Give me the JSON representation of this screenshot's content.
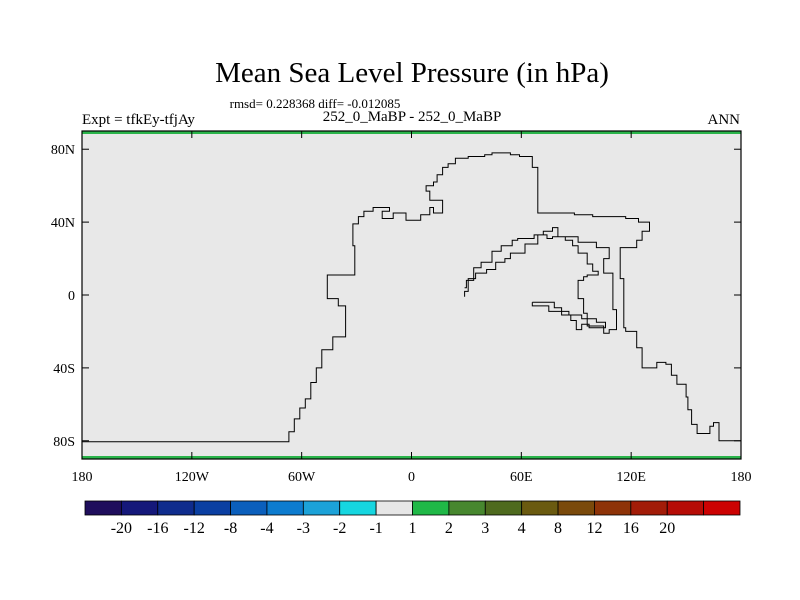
{
  "title": "Mean Sea Level Pressure (in hPa)",
  "stats_line": "rmsd= 0.228368 diff= -0.012085",
  "left_label": "Expt = tfkEy-tfjAy",
  "center_label": "252_0_MaBP - 252_0_MaBP",
  "right_label": "ANN",
  "map": {
    "lon_range": [
      -180,
      180
    ],
    "lat_range": [
      -90,
      90
    ],
    "fill_color": "#e8e8e8",
    "boundary_color": "#2ab44a",
    "lat_ticks": [
      {
        "value": 80,
        "label": "80N"
      },
      {
        "value": 40,
        "label": "40N"
      },
      {
        "value": 0,
        "label": "0"
      },
      {
        "value": -40,
        "label": "40S"
      },
      {
        "value": -80,
        "label": "80S"
      }
    ],
    "lon_ticks": [
      {
        "value": -180,
        "label": "180"
      },
      {
        "value": -120,
        "label": "120W"
      },
      {
        "value": -60,
        "label": "60W"
      },
      {
        "value": 0,
        "label": "0"
      },
      {
        "value": 60,
        "label": "60E"
      },
      {
        "value": 120,
        "label": "120E"
      },
      {
        "value": 180,
        "label": "180"
      }
    ],
    "coastlines": [
      [
        [
          -180,
          -80.5
        ],
        [
          -67,
          -80.5
        ],
        [
          -67,
          -75
        ],
        [
          -64,
          -75
        ],
        [
          -64,
          -68
        ],
        [
          -61,
          -68
        ],
        [
          -61,
          -62
        ],
        [
          -58,
          -62
        ],
        [
          -58,
          -57
        ],
        [
          -55,
          -57
        ],
        [
          -55,
          -48
        ],
        [
          -52,
          -48
        ],
        [
          -52,
          -40
        ],
        [
          -49,
          -40
        ],
        [
          -49,
          -30
        ],
        [
          -43,
          -30
        ],
        [
          -43,
          -23
        ],
        [
          -36,
          -23
        ],
        [
          -36,
          -6
        ],
        [
          -40,
          -6
        ],
        [
          -40,
          -2
        ],
        [
          -46,
          -2
        ],
        [
          -46,
          11
        ],
        [
          -31,
          11
        ],
        [
          -31,
          27
        ],
        [
          -32,
          27
        ],
        [
          -32,
          39
        ],
        [
          -29,
          39
        ],
        [
          -29,
          43
        ],
        [
          -26,
          43
        ],
        [
          -26,
          46
        ],
        [
          -21,
          46
        ],
        [
          -21,
          48
        ],
        [
          -12,
          48
        ],
        [
          -12,
          46
        ],
        [
          -16,
          46
        ],
        [
          -16,
          42
        ],
        [
          -10,
          42
        ],
        [
          -10,
          45
        ],
        [
          -3,
          45
        ],
        [
          -3,
          41
        ],
        [
          5,
          41
        ],
        [
          5,
          44
        ],
        [
          10,
          44
        ],
        [
          10,
          48
        ],
        [
          12,
          48
        ],
        [
          12,
          45
        ],
        [
          17,
          45
        ],
        [
          17,
          52
        ],
        [
          10,
          52
        ],
        [
          10,
          57
        ],
        [
          8,
          57
        ],
        [
          8,
          60
        ],
        [
          12,
          60
        ],
        [
          12,
          62
        ],
        [
          14,
          62
        ],
        [
          14,
          66
        ],
        [
          17,
          66
        ],
        [
          17,
          70
        ],
        [
          20,
          70
        ],
        [
          20,
          72
        ],
        [
          24,
          72
        ],
        [
          24,
          75
        ],
        [
          31,
          75
        ],
        [
          31,
          76
        ],
        [
          40,
          76
        ],
        [
          40,
          77
        ],
        [
          44,
          77
        ],
        [
          44,
          78
        ],
        [
          54,
          78
        ],
        [
          54,
          77
        ],
        [
          59,
          77
        ],
        [
          59,
          76
        ],
        [
          66,
          76
        ],
        [
          66,
          70
        ],
        [
          69,
          70
        ],
        [
          69,
          45
        ],
        [
          89,
          45
        ],
        [
          89,
          44
        ],
        [
          99,
          44
        ],
        [
          99,
          43
        ],
        [
          117,
          43
        ],
        [
          117,
          42
        ],
        [
          124,
          42
        ],
        [
          124,
          40
        ],
        [
          130,
          40
        ],
        [
          130,
          35
        ],
        [
          126,
          35
        ],
        [
          126,
          30
        ],
        [
          123,
          30
        ],
        [
          123,
          26
        ],
        [
          114,
          26
        ],
        [
          114,
          9
        ],
        [
          116,
          9
        ],
        [
          116,
          -18
        ],
        [
          117,
          -18
        ],
        [
          117,
          -20
        ],
        [
          123,
          -20
        ],
        [
          123,
          -29
        ],
        [
          126,
          -29
        ],
        [
          126,
          -40
        ],
        [
          134,
          -40
        ],
        [
          134,
          -37
        ],
        [
          139,
          -37
        ],
        [
          139,
          -38
        ],
        [
          142,
          -38
        ],
        [
          142,
          -44
        ],
        [
          145,
          -44
        ],
        [
          145,
          -49
        ],
        [
          150,
          -49
        ],
        [
          150,
          -56
        ],
        [
          151,
          -56
        ],
        [
          151,
          -63
        ],
        [
          153,
          -63
        ],
        [
          153,
          -71
        ],
        [
          156,
          -71
        ],
        [
          156,
          -76
        ],
        [
          163,
          -76
        ],
        [
          163,
          -72
        ],
        [
          165,
          -72
        ],
        [
          165,
          -70
        ],
        [
          168,
          -70
        ],
        [
          168,
          -80
        ],
        [
          180,
          -80
        ]
      ],
      [
        [
          29,
          -1
        ],
        [
          29,
          2
        ],
        [
          31,
          2
        ],
        [
          31,
          9
        ],
        [
          35,
          9
        ],
        [
          35,
          12
        ],
        [
          41,
          12
        ],
        [
          41,
          14
        ],
        [
          46,
          14
        ],
        [
          46,
          18
        ],
        [
          51,
          18
        ],
        [
          51,
          20
        ],
        [
          54,
          20
        ],
        [
          54,
          23
        ],
        [
          62,
          23
        ],
        [
          62,
          28
        ],
        [
          69,
          28
        ],
        [
          69,
          33
        ],
        [
          74,
          33
        ],
        [
          74,
          31
        ],
        [
          77,
          31
        ],
        [
          77,
          32
        ],
        [
          84,
          32
        ],
        [
          84,
          30
        ],
        [
          88,
          30
        ],
        [
          88,
          27
        ],
        [
          91,
          27
        ],
        [
          91,
          23
        ],
        [
          96,
          23
        ],
        [
          96,
          17
        ],
        [
          99,
          17
        ],
        [
          99,
          13
        ],
        [
          102,
          13
        ],
        [
          102,
          11
        ],
        [
          96,
          11
        ],
        [
          96,
          10
        ],
        [
          94,
          10
        ],
        [
          94,
          8
        ],
        [
          91,
          8
        ],
        [
          91,
          -2
        ],
        [
          94,
          -2
        ],
        [
          94,
          -10
        ],
        [
          96,
          -10
        ],
        [
          96,
          -17
        ],
        [
          105,
          -17
        ],
        [
          105,
          -21
        ],
        [
          108,
          -21
        ],
        [
          108,
          -19
        ],
        [
          112,
          -19
        ],
        [
          112,
          -8
        ],
        [
          110,
          -8
        ],
        [
          110,
          12
        ],
        [
          105,
          12
        ],
        [
          105,
          20
        ],
        [
          108,
          20
        ],
        [
          108,
          26
        ],
        [
          101,
          26
        ],
        [
          101,
          29
        ],
        [
          91,
          29
        ],
        [
          91,
          32
        ],
        [
          80,
          32
        ],
        [
          80,
          37
        ],
        [
          77,
          37
        ],
        [
          77,
          35
        ],
        [
          72,
          35
        ],
        [
          72,
          33
        ],
        [
          67,
          33
        ],
        [
          67,
          31
        ],
        [
          58,
          31
        ],
        [
          58,
          30
        ],
        [
          55,
          30
        ],
        [
          55,
          27
        ],
        [
          49,
          27
        ],
        [
          49,
          24
        ],
        [
          44,
          24
        ],
        [
          44,
          18
        ],
        [
          38,
          18
        ],
        [
          38,
          15
        ],
        [
          34,
          15
        ],
        [
          34,
          8
        ],
        [
          30,
          8
        ],
        [
          30,
          4
        ],
        [
          29,
          4
        ]
      ],
      [
        [
          66,
          -4
        ],
        [
          66,
          -6
        ],
        [
          75,
          -6
        ],
        [
          75,
          -9
        ],
        [
          82,
          -9
        ],
        [
          82,
          -11
        ],
        [
          87,
          -11
        ],
        [
          87,
          -14
        ],
        [
          90,
          -14
        ],
        [
          90,
          -19
        ],
        [
          93,
          -19
        ],
        [
          93,
          -16
        ],
        [
          97,
          -16
        ],
        [
          97,
          -18
        ],
        [
          106,
          -18
        ],
        [
          106,
          -15
        ],
        [
          101,
          -15
        ],
        [
          101,
          -13
        ],
        [
          93,
          -13
        ],
        [
          93,
          -11
        ],
        [
          86,
          -11
        ],
        [
          86,
          -9
        ],
        [
          82,
          -9
        ],
        [
          82,
          -7
        ],
        [
          78,
          -7
        ],
        [
          78,
          -4
        ],
        [
          66,
          -4
        ]
      ]
    ]
  },
  "colorbar": {
    "colors": [
      "#1f0e5c",
      "#15187a",
      "#0f2c8d",
      "#0a3fa2",
      "#0b5fbc",
      "#0d7ccf",
      "#1ca2d8",
      "#16d6e0",
      "#e6e6e6",
      "#20b847",
      "#47872f",
      "#4e6a1e",
      "#6a5a10",
      "#7a4a0b",
      "#8e3308",
      "#a21c08",
      "#b60c06",
      "#cc0202"
    ],
    "labels": [
      "-20",
      "-16",
      "-12",
      "-8",
      "-4",
      "-3",
      "-2",
      "-1",
      "1",
      "2",
      "3",
      "4",
      "8",
      "12",
      "16",
      "20"
    ]
  }
}
